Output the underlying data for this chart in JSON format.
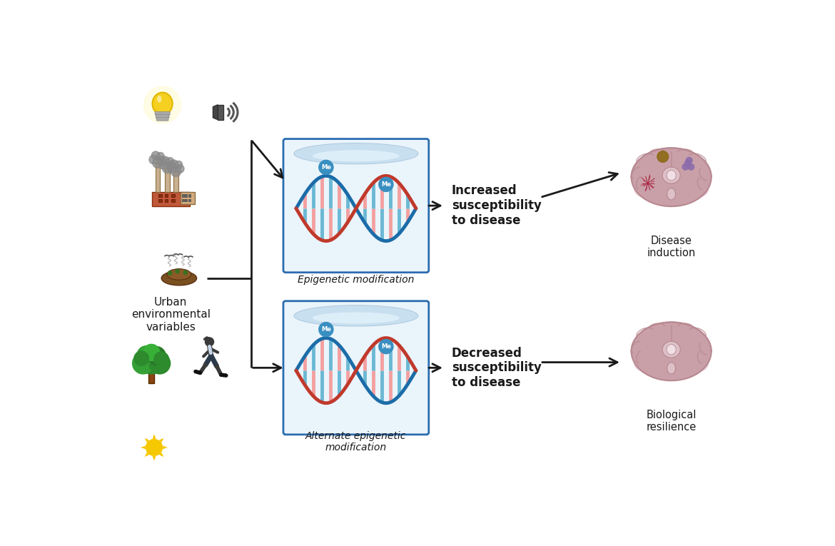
{
  "bg_color": "#ffffff",
  "box_border_color": "#2b6cb0",
  "box_bg_color": "#eaf4fb",
  "arrow_color": "#1a1a1a",
  "text_color": "#1a1a1a",
  "label1": "Epigenetic modification",
  "label2": "Alternate epigenetic\nmodification",
  "text_top_bold": "Increased\nsusceptibility\nto disease",
  "text_bottom_bold": "Decreased\nsusceptibility\nto disease",
  "caption_top": "Disease\ninduction",
  "caption_bottom": "Biological\nresilience",
  "left_label": "Urban\nenvironmental\nvariables",
  "dna_blue": "#1b6ca8",
  "dna_red": "#c0392b",
  "dna_pink": "#f4a0a0",
  "dna_lightblue": "#6bb8d4",
  "me_circle_color": "#3a8fc1",
  "figsize": [
    11.7,
    7.65
  ],
  "dpi": 100
}
